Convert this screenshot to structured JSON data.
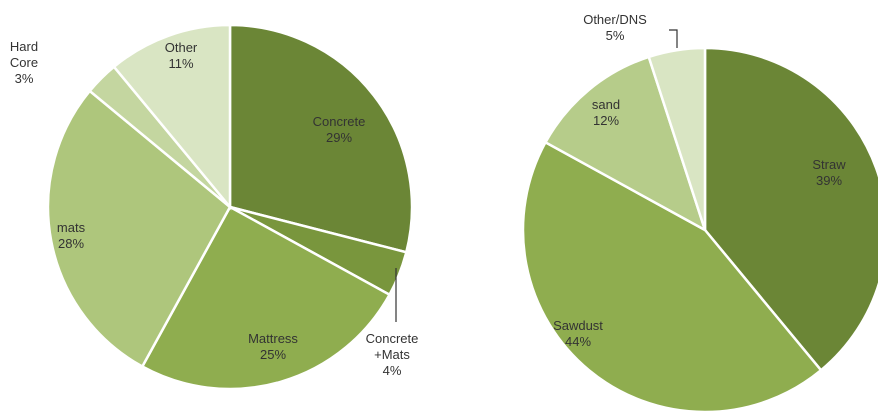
{
  "chart_data": [
    {
      "type": "pie",
      "title": "",
      "slices": [
        {
          "label": "Concrete",
          "value": 29,
          "color": "#6b8636"
        },
        {
          "label": "Concrete +Mats",
          "value": 4,
          "color": "#79963d"
        },
        {
          "label": "Mattress",
          "value": 25,
          "color": "#8fad4f"
        },
        {
          "label": "mats",
          "value": 28,
          "color": "#aec67c"
        },
        {
          "label": "Hard Core",
          "value": 3,
          "color": "#c4d6a0"
        },
        {
          "label": "Other",
          "value": 11,
          "color": "#d9e5c3"
        }
      ],
      "display_labels": [
        {
          "lines": [
            "Concrete",
            "29%"
          ]
        },
        {
          "lines": [
            "Concrete",
            "+Mats",
            "4%"
          ]
        },
        {
          "lines": [
            "Mattress",
            "25%"
          ]
        },
        {
          "lines": [
            "mats",
            "28%"
          ]
        },
        {
          "lines": [
            "Hard",
            "Core",
            "3%"
          ]
        },
        {
          "lines": [
            "Other",
            "11%"
          ]
        }
      ]
    },
    {
      "type": "pie",
      "title": "",
      "slices": [
        {
          "label": "Straw",
          "value": 39,
          "color": "#6b8636"
        },
        {
          "label": "Sawdust",
          "value": 44,
          "color": "#8fad4f"
        },
        {
          "label": "sand",
          "value": 12,
          "color": "#b6cc8a"
        },
        {
          "label": "Other/DNS",
          "value": 5,
          "color": "#d9e5c3"
        }
      ],
      "display_labels": [
        {
          "lines": [
            "Straw",
            "39%"
          ]
        },
        {
          "lines": [
            "Sawdust",
            "44%"
          ]
        },
        {
          "lines": [
            "sand",
            "12%"
          ]
        },
        {
          "lines": [
            "Other/DNS",
            "5%"
          ]
        }
      ]
    }
  ]
}
